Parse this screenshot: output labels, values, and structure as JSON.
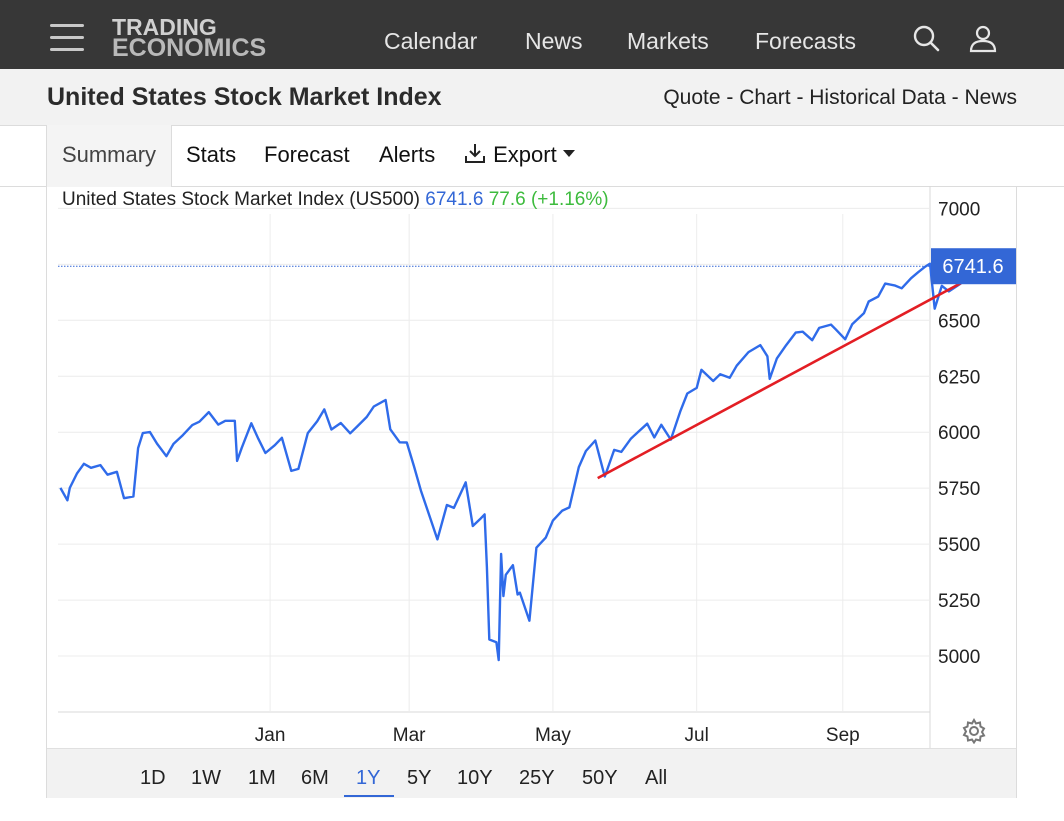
{
  "header": {
    "logo_line1": "TRADING",
    "logo_line2": "ECONOMICS",
    "nav": [
      "Calendar",
      "News",
      "Markets",
      "Forecasts"
    ]
  },
  "page": {
    "title": "United States Stock Market Index",
    "sublinks": [
      "Quote",
      "Chart",
      "Historical Data",
      "News"
    ]
  },
  "tabs": [
    "Summary",
    "Stats",
    "Forecast",
    "Alerts",
    "Export"
  ],
  "ranges": [
    "1D",
    "1W",
    "1M",
    "6M",
    "1Y",
    "5Y",
    "10Y",
    "25Y",
    "50Y",
    "All"
  ],
  "active_range": "1Y",
  "colors": {
    "line": "#2f6bea",
    "trend": "#e31e24",
    "accent": "#3367d6",
    "change": "#3dbb3d"
  },
  "chart_data": {
    "type": "line",
    "legend": {
      "name": "United States Stock Market Index (US500)",
      "last": "6741.6",
      "change": "77.6",
      "change_pct": "(+1.16%)"
    },
    "last_value": 6741.6,
    "last_label": "6741.6",
    "ylim": [
      4750,
      7100
    ],
    "yticks": [
      5000,
      5250,
      5500,
      5750,
      6000,
      6250,
      6500,
      6750,
      7000
    ],
    "ytick_labels": [
      "5000",
      "5250",
      "5500",
      "5750",
      "6000",
      "6250",
      "6500",
      "",
      "7000"
    ],
    "xlim": [
      "2024-10-03",
      "2025-10-08"
    ],
    "xticks": [
      {
        "label": "Jan",
        "date": "2025-01-01"
      },
      {
        "label": "Mar",
        "date": "2025-03-01"
      },
      {
        "label": "May",
        "date": "2025-05-01"
      },
      {
        "label": "Jul",
        "date": "2025-07-01"
      },
      {
        "label": "Sep",
        "date": "2025-09-01"
      }
    ],
    "x": [
      "2024-10-04",
      "2024-10-07",
      "2024-10-08",
      "2024-10-11",
      "2024-10-14",
      "2024-10-17",
      "2024-10-21",
      "2024-10-24",
      "2024-10-28",
      "2024-10-31",
      "2024-11-04",
      "2024-11-06",
      "2024-11-08",
      "2024-11-11",
      "2024-11-14",
      "2024-11-18",
      "2024-11-21",
      "2024-11-25",
      "2024-11-29",
      "2024-12-02",
      "2024-12-06",
      "2024-12-10",
      "2024-12-13",
      "2024-12-17",
      "2024-12-18",
      "2024-12-20",
      "2024-12-24",
      "2024-12-27",
      "2024-12-30",
      "2025-01-03",
      "2025-01-06",
      "2025-01-10",
      "2025-01-13",
      "2025-01-17",
      "2025-01-21",
      "2025-01-24",
      "2025-01-27",
      "2025-01-31",
      "2025-02-04",
      "2025-02-07",
      "2025-02-11",
      "2025-02-14",
      "2025-02-19",
      "2025-02-21",
      "2025-02-25",
      "2025-02-28",
      "2025-03-03",
      "2025-03-06",
      "2025-03-10",
      "2025-03-13",
      "2025-03-17",
      "2025-03-20",
      "2025-03-25",
      "2025-03-28",
      "2025-03-31",
      "2025-04-02",
      "2025-04-03",
      "2025-04-04",
      "2025-04-07",
      "2025-04-08",
      "2025-04-09",
      "2025-04-10",
      "2025-04-11",
      "2025-04-14",
      "2025-04-16",
      "2025-04-17",
      "2025-04-21",
      "2025-04-24",
      "2025-04-28",
      "2025-05-01",
      "2025-05-05",
      "2025-05-08",
      "2025-05-12",
      "2025-05-15",
      "2025-05-19",
      "2025-05-22",
      "2025-05-23",
      "2025-05-27",
      "2025-05-30",
      "2025-06-03",
      "2025-06-06",
      "2025-06-10",
      "2025-06-13",
      "2025-06-16",
      "2025-06-20",
      "2025-06-24",
      "2025-06-27",
      "2025-07-01",
      "2025-07-03",
      "2025-07-08",
      "2025-07-11",
      "2025-07-15",
      "2025-07-18",
      "2025-07-23",
      "2025-07-28",
      "2025-07-31",
      "2025-08-01",
      "2025-08-04",
      "2025-08-08",
      "2025-08-12",
      "2025-08-15",
      "2025-08-19",
      "2025-08-22",
      "2025-08-27",
      "2025-08-29",
      "2025-09-02",
      "2025-09-05",
      "2025-09-10",
      "2025-09-12",
      "2025-09-16",
      "2025-09-19",
      "2025-09-23",
      "2025-09-26",
      "2025-09-30",
      "2025-10-03",
      "2025-10-06",
      "2025-10-08",
      "2025-10-10",
      "2025-10-13",
      "2025-10-16",
      "2025-10-21",
      "2025-10-27"
    ],
    "values": [
      5751,
      5696,
      5751,
      5815,
      5859,
      5841,
      5853,
      5810,
      5823,
      5705,
      5713,
      5929,
      5996,
      6001,
      5949,
      5893,
      5948,
      5987,
      6032,
      6047,
      6090,
      6034,
      6051,
      6051,
      5872,
      5931,
      6040,
      5971,
      5907,
      5942,
      5975,
      5827,
      5836,
      5996,
      6049,
      6102,
      6012,
      6041,
      5995,
      6026,
      6068,
      6115,
      6144,
      6013,
      5955,
      5954,
      5849,
      5739,
      5614,
      5521,
      5675,
      5662,
      5776,
      5581,
      5611,
      5633,
      5397,
      5074,
      5062,
      4982,
      5456,
      5268,
      5363,
      5406,
      5275,
      5283,
      5158,
      5484,
      5529,
      5605,
      5650,
      5664,
      5844,
      5916,
      5963,
      5842,
      5802,
      5921,
      5912,
      5970,
      6000,
      6038,
      5977,
      6033,
      5967,
      6092,
      6173,
      6198,
      6279,
      6229,
      6259,
      6243,
      6297,
      6358,
      6389,
      6339,
      6238,
      6329,
      6389,
      6445,
      6449,
      6411,
      6466,
      6481,
      6460,
      6415,
      6482,
      6532,
      6584,
      6606,
      6664,
      6656,
      6643,
      6688,
      6715,
      6740,
      6753,
      6552,
      6654,
      6629,
      6664,
      6741.6
    ]
  }
}
